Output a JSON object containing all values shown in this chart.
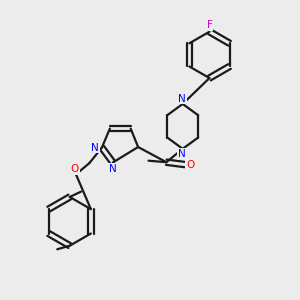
{
  "background_color": "#ececec",
  "bond_color": "#1a1a1a",
  "nitrogen_color": "#0000ff",
  "oxygen_color": "#ff0000",
  "fluorine_color": "#cc00cc",
  "line_width": 1.6,
  "fig_width": 3.0,
  "fig_height": 3.0,
  "dpi": 100,
  "xlim": [
    0,
    10
  ],
  "ylim": [
    0,
    10
  ]
}
